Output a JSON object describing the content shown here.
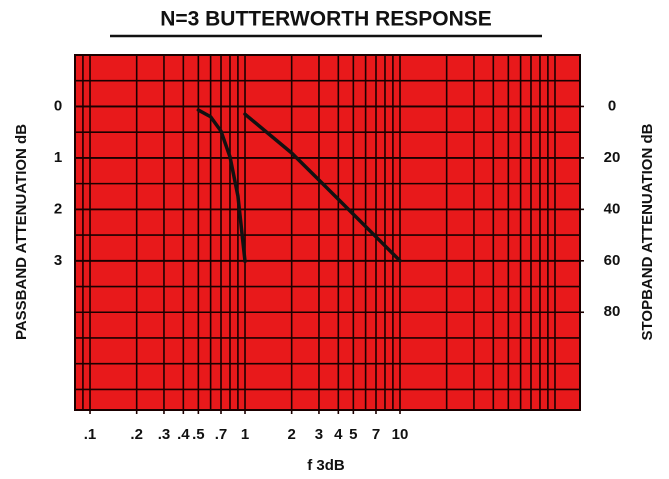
{
  "chart_data": {
    "type": "line",
    "title": "N=3 BUTTERWORTH RESPONSE",
    "xlabel": "f 3dB",
    "ylabel": "PASSBAND ATTENUATION dB",
    "y2label": "STOPBAND ATTENUATION dB",
    "xscale": "log",
    "xlim": [
      0.08,
      145
    ],
    "xticks": [
      {
        "value": 0.1,
        "label": ".1"
      },
      {
        "value": 0.2,
        "label": ".2"
      },
      {
        "value": 0.3,
        "label": ".3"
      },
      {
        "value": 0.4,
        "label": ".4"
      },
      {
        "value": 0.5,
        "label": ".5"
      },
      {
        "value": 0.7,
        "label": ".7"
      },
      1,
      2,
      3,
      4,
      5,
      7,
      10
    ],
    "ylim": [
      -1,
      5.9
    ],
    "yticks": [
      0,
      1,
      2,
      3
    ],
    "y_inverted": true,
    "y2lim": [
      -20,
      118
    ],
    "y2ticks": [
      0,
      20,
      40,
      60,
      80
    ],
    "grid": true,
    "grid_color": "#1a0000",
    "background": "#e8191b",
    "series": [
      {
        "color": "#111111",
        "x": [
          0.5,
          0.6,
          0.7,
          0.8,
          0.9,
          1
        ],
        "values": [
          0.07,
          0.2,
          0.48,
          0.98,
          1.74,
          3.01
        ]
      },
      {
        "color": "#111111",
        "axis": "y2",
        "x": [
          1,
          2,
          3,
          5,
          10
        ],
        "values": [
          3,
          18.1,
          28.6,
          41.9,
          60
        ]
      }
    ]
  }
}
